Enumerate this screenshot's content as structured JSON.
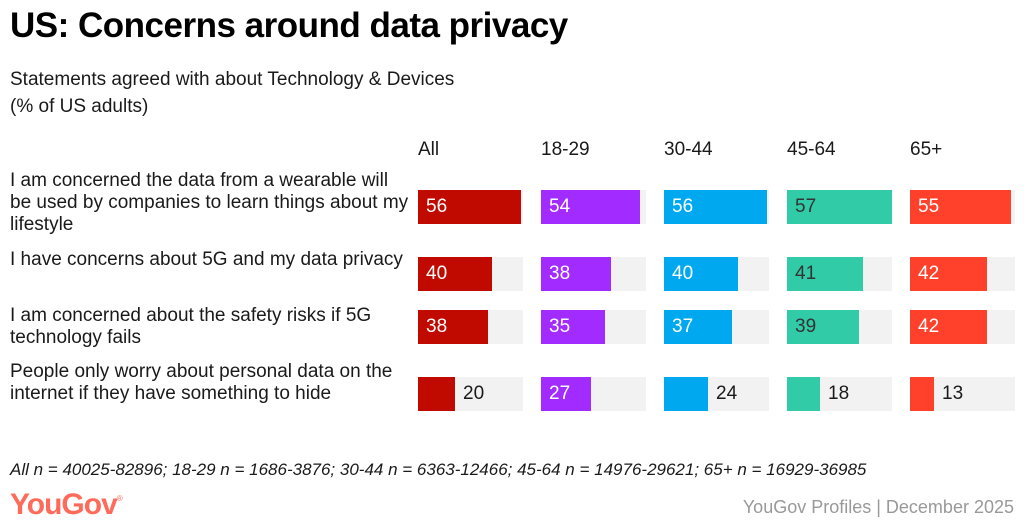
{
  "header": {
    "title": "US: Concerns around data privacy",
    "subtitle_line1": "Statements agreed with about Technology & Devices",
    "subtitle_line2": "(% of US adults)"
  },
  "chart_data": {
    "type": "bar",
    "title": "US: Concerns around data privacy",
    "subtitle": "Statements agreed with about Technology & Devices (% of US adults)",
    "xlabel": "",
    "ylabel": "",
    "xlim": [
      0,
      57
    ],
    "grid": false,
    "categories": [
      "I am concerned the data from a wearable will be used by companies to learn things about my lifestyle",
      "I have concerns about 5G and my data privacy",
      "I am concerned about the safety risks if 5G technology fails",
      "People only worry about personal data on the internet if they have something to hide"
    ],
    "series": [
      {
        "name": "All",
        "color": "#c00a00",
        "label_color": "#ffffff",
        "values": [
          56,
          40,
          38,
          20
        ]
      },
      {
        "name": "18-29",
        "color": "#a22cff",
        "label_color": "#ffffff",
        "values": [
          54,
          38,
          35,
          27
        ]
      },
      {
        "name": "30-44",
        "color": "#00a9ef",
        "label_color": "#ffffff",
        "values": [
          56,
          40,
          37,
          24
        ]
      },
      {
        "name": "45-64",
        "color": "#32cba8",
        "label_color": "#333333",
        "values": [
          57,
          41,
          39,
          18
        ]
      },
      {
        "name": "65+",
        "color": "#ff412c",
        "label_color": "#ffffff",
        "values": [
          55,
          42,
          42,
          13
        ]
      }
    ]
  },
  "footer": {
    "footnote": "All n = 40025-82896; 18-29 n = 1686-3876; 30-44 n = 6363-12466; 45-64 n = 14976-29621; 65+ n = 16929-36985",
    "logo_text": "YouGov",
    "logo_mark": "®",
    "logo_color": "#ff6b5b",
    "source": "YouGov Profiles | December 2025"
  }
}
